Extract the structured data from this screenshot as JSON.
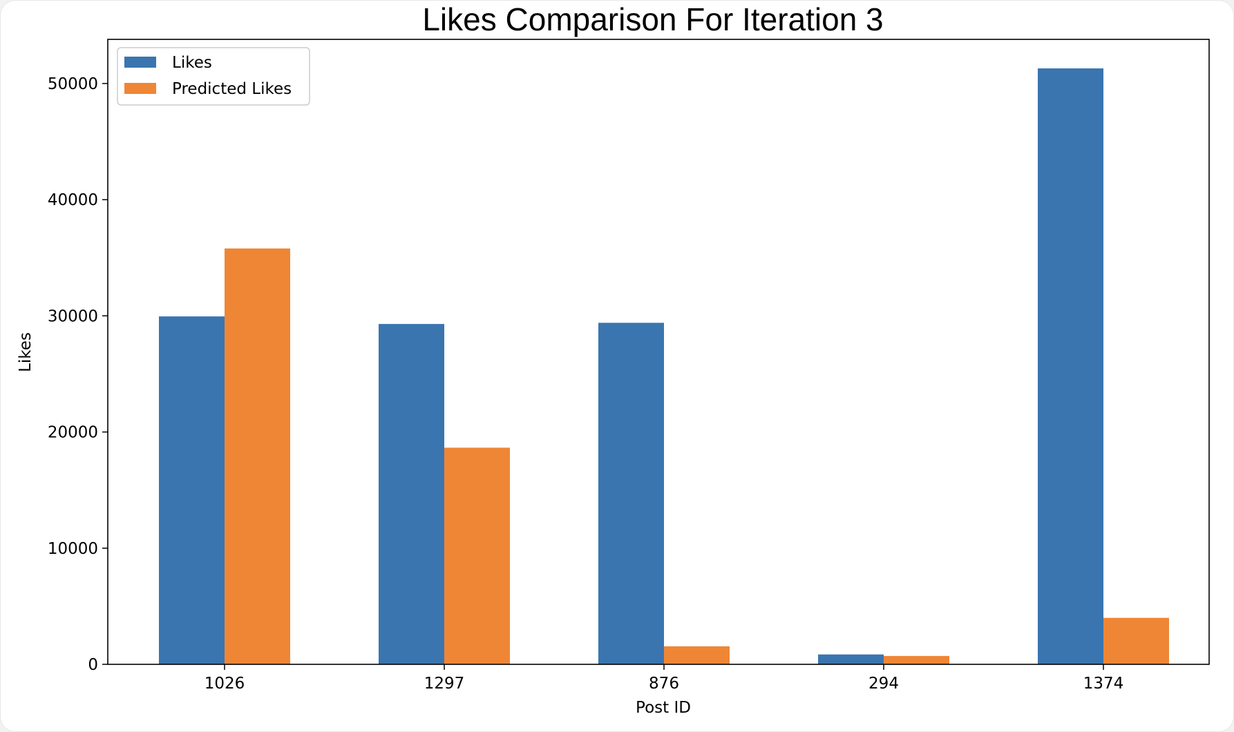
{
  "chart_data": {
    "type": "bar",
    "title": "Likes Comparison For Iteration 3",
    "xlabel": "Post ID",
    "ylabel": "Likes",
    "categories": [
      "1026",
      "1297",
      "876",
      "294",
      "1374"
    ],
    "series": [
      {
        "name": "Likes",
        "color": "#3a75af",
        "values": [
          29950,
          29300,
          29400,
          850,
          51300
        ]
      },
      {
        "name": "Predicted Likes",
        "color": "#ef8636",
        "values": [
          35800,
          18650,
          1550,
          720,
          4000
        ]
      }
    ],
    "yticks": [
      0,
      10000,
      20000,
      30000,
      40000,
      50000
    ],
    "ylim": [
      0,
      53800
    ],
    "grid": false,
    "legend_position": "top-left"
  }
}
